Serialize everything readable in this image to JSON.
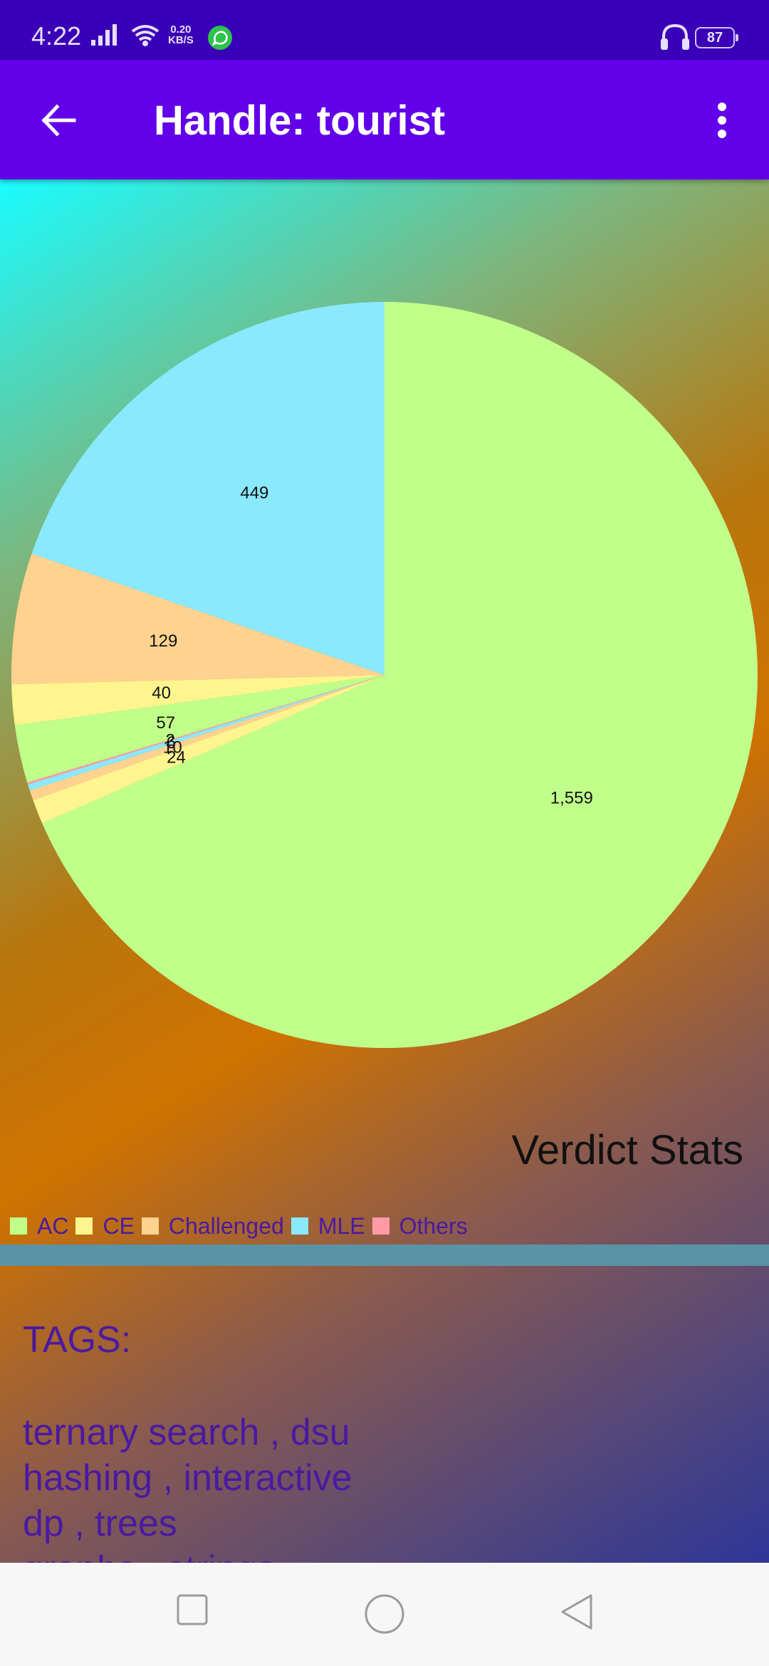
{
  "status_bar": {
    "time": "4:22",
    "net_speed_value": "0.20",
    "net_speed_unit": "KB/S",
    "battery": "87"
  },
  "app_bar": {
    "title": "Handle: tourist"
  },
  "chart_data": {
    "type": "pie",
    "title": "Verdict Stats",
    "slices": [
      {
        "label": "AC",
        "value": 1559,
        "color": "#c0ff8a"
      },
      {
        "label": "CE",
        "value": 24,
        "color": "#fff58f"
      },
      {
        "label": "Challenged",
        "value": 10,
        "color": "#ffd28f"
      },
      {
        "label": "MLE",
        "value": 6,
        "color": "#8ae9ff"
      },
      {
        "label": "Others",
        "value": 2,
        "color": "#ff9aa6"
      },
      {
        "label": "AC",
        "value": 57,
        "color": "#c0ff8a"
      },
      {
        "label": "CE",
        "value": 40,
        "color": "#fff58f"
      },
      {
        "label": "Challenged",
        "value": 129,
        "color": "#ffd28f"
      },
      {
        "label": "MLE",
        "value": 449,
        "color": "#8ae9ff"
      }
    ],
    "legend": [
      {
        "label": "AC",
        "color": "#c0ff8a"
      },
      {
        "label": "CE",
        "color": "#fff58f"
      },
      {
        "label": "Challenged",
        "color": "#ffd28f"
      },
      {
        "label": "MLE",
        "color": "#8ae9ff"
      },
      {
        "label": "Others",
        "color": "#ff9aa6"
      }
    ],
    "legend_position": "bottom-left"
  },
  "tags": {
    "heading": "TAGS:",
    "lines": [
      "ternary search , dsu",
      "hashing , interactive",
      "dp , trees",
      "graphs , strings"
    ]
  },
  "colors": {
    "primary": "#6200ea",
    "primary_dark": "#3a00b8",
    "text_accent": "#4a1aa0"
  }
}
